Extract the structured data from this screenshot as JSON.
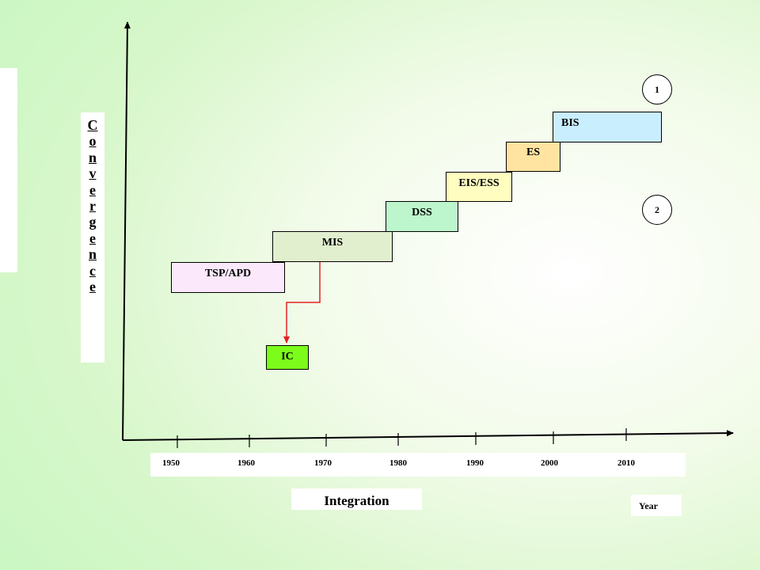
{
  "diagram": {
    "y_axis_label_letters": [
      "C",
      "o",
      "n",
      "v",
      "e",
      "r",
      "g",
      "e",
      "n",
      "c",
      "e"
    ],
    "x_axis_label": "Integration",
    "x_axis_unit": "Year",
    "years": [
      "1950",
      "1960",
      "1970",
      "1980",
      "1990",
      "2000",
      "2010"
    ],
    "stages": [
      {
        "label": "TSP/APD",
        "color": "#fbe8fb"
      },
      {
        "label": "MIS",
        "color": "#e1efcf"
      },
      {
        "label": "DSS",
        "color": "#bdf5cc"
      },
      {
        "label": "EIS/ESS",
        "color": "#fffdbf"
      },
      {
        "label": "ES",
        "color": "#ffe3a0"
      },
      {
        "label": "BIS",
        "color": "#c9eefe"
      }
    ],
    "ic_box": {
      "label": "IC",
      "color": "#7cfc1a"
    },
    "circles": [
      "1",
      "2"
    ],
    "connector_color": "#e32222"
  }
}
